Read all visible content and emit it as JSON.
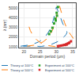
{
  "chart_data": {
    "type": "line",
    "xlabel": "Domain period (μm)",
    "ylabel": "λ (nm)",
    "xlim": [
      18.5,
      36
    ],
    "ylim": [
      900,
      5500
    ],
    "xticks": [
      20,
      25,
      30,
      35
    ],
    "yticks": [
      1000,
      2000,
      3000,
      4000,
      5000
    ],
    "grid": true,
    "legend": "lower left",
    "series": [
      {
        "name": "Theory at 100°C",
        "type": "line",
        "line_style": "dashed",
        "x": [
          19.0,
          19.5,
          20.0,
          20.5,
          21.0,
          21.5,
          22.0,
          22.5,
          23.0,
          23.5,
          24.0,
          24.5,
          25.0,
          25.5,
          26.0,
          26.5,
          27.0,
          27.5,
          28.0,
          28.5,
          29.0,
          29.5,
          30.0,
          30.5,
          31.0,
          31.5,
          32.0,
          32.5,
          33.0,
          33.2,
          33.3,
          33.2,
          33.0,
          32.5,
          32.0,
          31.5,
          31.0,
          30.5,
          30.0,
          29.5,
          29.0,
          28.5,
          28.0,
          27.5,
          27.0,
          26.5,
          26.0,
          25.5,
          25.0,
          24.5,
          24.0,
          23.5,
          23.0,
          22.5,
          22.0,
          21.5,
          21.0,
          20.5,
          20.0,
          19.5,
          19.0
        ],
        "values": [
          1047,
          1060,
          1075,
          1095,
          1120,
          1150,
          1185,
          1225,
          1275,
          1330,
          1400,
          1480,
          1575,
          1690,
          1830,
          2000,
          2210,
          2460,
          2770,
          3160,
          3660,
          4330,
          5100,
          4700,
          4200,
          3750,
          3370,
          3040,
          2760,
          2620,
          2524,
          2400,
          2260,
          2060,
          1900,
          1760,
          1640,
          1535,
          1445,
          1365,
          1295,
          1235,
          1183,
          1140,
          1103,
          1072,
          1047,
          1027,
          1011,
          1000,
          1047,
          1047,
          1047,
          1047,
          1047,
          1047,
          1047,
          1047,
          1047,
          1047,
          1047
        ]
      },
      {
        "name": "Theory at 500°C",
        "type": "line",
        "line_style": "dashed",
        "x": [
          21.0,
          21.5,
          22.0,
          22.5,
          23.0,
          23.5,
          24.0,
          24.5,
          25.0,
          25.5,
          26.0,
          26.5,
          27.0,
          27.5,
          28.0,
          28.5,
          29.0,
          29.5,
          30.0,
          30.5,
          31.0,
          31.5,
          32.0,
          32.5,
          33.0,
          33.5,
          34.0,
          34.5,
          35.0,
          35.3,
          35.4,
          35.3,
          35.0,
          34.5,
          34.0,
          33.5,
          33.0,
          32.5,
          32.0,
          31.5,
          31.0,
          30.5,
          30.0,
          29.5,
          29.0,
          28.5,
          28.0,
          27.5,
          27.0,
          26.5,
          26.0,
          25.5,
          25.0,
          24.5,
          24.0,
          23.5,
          23.0,
          22.5,
          22.0,
          21.5,
          21.0
        ],
        "values": [
          1047,
          1060,
          1080,
          1105,
          1135,
          1170,
          1215,
          1270,
          1335,
          1415,
          1515,
          1635,
          1785,
          1970,
          2200,
          2490,
          2860,
          3340,
          4000,
          4900,
          5200,
          4600,
          4000,
          3500,
          3080,
          2730,
          2440,
          2190,
          1980,
          1840,
          1780,
          1700,
          1590,
          1480,
          1385,
          1300,
          1225,
          1160,
          1105,
          1060,
          1025,
          1002,
          1000,
          1010,
          1025,
          1047,
          1075,
          1110,
          1152,
          1205,
          1268,
          1345,
          1440,
          1555,
          1695,
          1865,
          2075,
          2335,
          2660,
          3080,
          3640
        ]
      },
      {
        "name": "Experiment at 100°C",
        "type": "scatter",
        "marker": "square",
        "x": [
          27.8,
          28.3,
          28.8,
          29.3,
          29.7,
          30.1,
          30.5,
          30.2,
          29.8
        ],
        "values": [
          2300,
          2600,
          2950,
          3400,
          3900,
          4500,
          5100,
          4200,
          3700
        ]
      },
      {
        "name": "Experiment at 500°C",
        "type": "scatter",
        "marker": "square",
        "x": [
          30.5,
          31.0,
          31.5,
          32.0,
          32.5,
          33.0,
          33.5,
          34.0,
          34.5,
          33.8,
          33.2,
          32.7
        ],
        "values": [
          1050,
          1080,
          1110,
          1145,
          1190,
          1245,
          1320,
          1420,
          1555,
          1350,
          1220,
          1170
        ]
      }
    ]
  }
}
